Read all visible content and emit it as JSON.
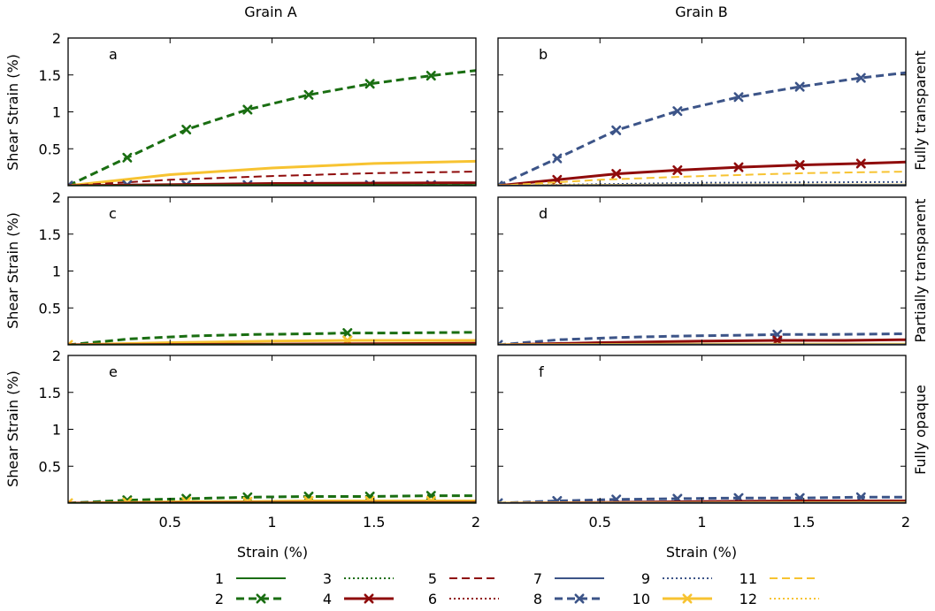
{
  "figure": {
    "column_titles": [
      "Grain A",
      "Grain B"
    ],
    "row_titles": [
      "Fully transparent",
      "Partially transparent",
      "Fully opaque"
    ],
    "xlabel": "Strain (%)",
    "ylabel": "Shear Strain (%)"
  },
  "colors": {
    "green": "#1a6e12",
    "darkred": "#8f0b0b",
    "blue": "#3c5488",
    "yellow": "#f7c331",
    "axis": "#000000"
  },
  "legend": {
    "columns": [
      [
        {
          "label": "1",
          "series": "1"
        },
        {
          "label": "2",
          "series": "2"
        }
      ],
      [
        {
          "label": "3",
          "series": "3"
        },
        {
          "label": "4",
          "series": "4"
        }
      ],
      [
        {
          "label": "5",
          "series": "5"
        },
        {
          "label": "6",
          "series": "6"
        }
      ],
      [
        {
          "label": "7",
          "series": "7"
        },
        {
          "label": "8",
          "series": "8"
        }
      ],
      [
        {
          "label": "9",
          "series": "9"
        },
        {
          "label": "10",
          "series": "10"
        }
      ],
      [
        {
          "label": "11",
          "series": "11"
        },
        {
          "label": "12",
          "series": "12"
        }
      ]
    ]
  },
  "series_styles": {
    "1": {
      "color": "green",
      "dash": "solid",
      "width": 2,
      "marker": false
    },
    "2": {
      "color": "green",
      "dash": "dash",
      "width": 3,
      "marker": true
    },
    "3": {
      "color": "green",
      "dash": "dot",
      "width": 2,
      "marker": false
    },
    "4": {
      "color": "darkred",
      "dash": "solid",
      "width": 3,
      "marker": true
    },
    "5": {
      "color": "darkred",
      "dash": "dash",
      "width": 2,
      "marker": false
    },
    "6": {
      "color": "darkred",
      "dash": "dot",
      "width": 2,
      "marker": false
    },
    "7": {
      "color": "blue",
      "dash": "solid",
      "width": 2,
      "marker": false
    },
    "8": {
      "color": "blue",
      "dash": "dash",
      "width": 3,
      "marker": true
    },
    "9": {
      "color": "blue",
      "dash": "dot",
      "width": 2,
      "marker": false
    },
    "10": {
      "color": "yellow",
      "dash": "solid",
      "width": 3,
      "marker": true
    },
    "11": {
      "color": "yellow",
      "dash": "dash",
      "width": 2,
      "marker": false
    },
    "12": {
      "color": "yellow",
      "dash": "dot",
      "width": 2,
      "marker": false
    }
  },
  "chart_data": [
    {
      "type": "line",
      "panel": "a",
      "row": 0,
      "col": 0,
      "xlim": [
        0,
        2
      ],
      "ylim": [
        0,
        2
      ],
      "xticks": [
        "0.5",
        "1",
        "1.5",
        "2"
      ],
      "yticks": [
        "0.5",
        "1",
        "1.5",
        "2"
      ],
      "show_xticks": false,
      "show_yticks": true,
      "series": [
        {
          "id": "2",
          "x": [
            0,
            0.29,
            0.58,
            0.88,
            1.18,
            1.48,
            1.78,
            2.0
          ],
          "y": [
            0,
            0.38,
            0.76,
            1.03,
            1.23,
            1.38,
            1.49,
            1.56
          ],
          "markers": [
            0,
            1,
            2,
            3,
            4,
            5,
            6
          ]
        },
        {
          "id": "10",
          "x": [
            0,
            0.5,
            1.0,
            1.5,
            2.0
          ],
          "y": [
            0,
            0.15,
            0.24,
            0.3,
            0.33
          ],
          "markers": []
        },
        {
          "id": "5",
          "x": [
            0,
            0.5,
            1.0,
            1.5,
            2.0
          ],
          "y": [
            0,
            0.08,
            0.13,
            0.17,
            0.19
          ],
          "markers": []
        },
        {
          "id": "8",
          "x": [
            0,
            0.29,
            0.58,
            0.88,
            1.18,
            1.48,
            1.78,
            2.0
          ],
          "y": [
            0,
            0.01,
            0.01,
            0.01,
            0.01,
            0.01,
            0.01,
            0.01
          ],
          "markers": [
            0,
            1,
            2,
            3,
            4,
            5,
            6
          ]
        },
        {
          "id": "4",
          "x": [
            0,
            1.0,
            2.0
          ],
          "y": [
            0,
            0.03,
            0.04
          ],
          "markers": []
        },
        {
          "id": "1",
          "x": [
            0,
            1.0,
            2.0
          ],
          "y": [
            0,
            0.01,
            0.01
          ],
          "markers": []
        }
      ]
    },
    {
      "type": "line",
      "panel": "b",
      "row": 0,
      "col": 1,
      "xlim": [
        0,
        2
      ],
      "ylim": [
        0,
        2
      ],
      "xticks": [
        "0.5",
        "1",
        "1.5",
        "2"
      ],
      "yticks": [
        "0.5",
        "1",
        "1.5",
        "2"
      ],
      "show_xticks": false,
      "show_yticks": false,
      "series": [
        {
          "id": "8",
          "x": [
            0,
            0.29,
            0.58,
            0.88,
            1.18,
            1.48,
            1.78,
            2.0
          ],
          "y": [
            0,
            0.37,
            0.75,
            1.01,
            1.2,
            1.34,
            1.46,
            1.53
          ],
          "markers": [
            0,
            1,
            2,
            3,
            4,
            5,
            6
          ]
        },
        {
          "id": "4",
          "x": [
            0,
            0.29,
            0.58,
            0.88,
            1.18,
            1.48,
            1.78,
            2.0
          ],
          "y": [
            0,
            0.08,
            0.16,
            0.21,
            0.25,
            0.28,
            0.3,
            0.32
          ],
          "markers": [
            1,
            2,
            3,
            4,
            5,
            6
          ]
        },
        {
          "id": "11",
          "x": [
            0,
            0.5,
            1.0,
            1.5,
            2.0
          ],
          "y": [
            0,
            0.08,
            0.13,
            0.17,
            0.19
          ],
          "markers": []
        },
        {
          "id": "9",
          "x": [
            0,
            1.0,
            2.0
          ],
          "y": [
            0,
            0.04,
            0.05
          ],
          "markers": []
        },
        {
          "id": "10",
          "x": [
            0,
            1.0,
            2.0
          ],
          "y": [
            0,
            0.01,
            0.01
          ],
          "markers": []
        },
        {
          "id": "7",
          "x": [
            0,
            1.0,
            2.0
          ],
          "y": [
            0,
            0.01,
            0.01
          ],
          "markers": []
        }
      ]
    },
    {
      "type": "line",
      "panel": "c",
      "row": 1,
      "col": 0,
      "xlim": [
        0,
        2
      ],
      "ylim": [
        0,
        2
      ],
      "xticks": [
        "0.5",
        "1",
        "1.5",
        "2"
      ],
      "yticks": [
        "0.5",
        "1",
        "1.5",
        "2"
      ],
      "show_xticks": false,
      "show_yticks": true,
      "series": [
        {
          "id": "2",
          "x": [
            0,
            0.3,
            0.6,
            0.9,
            1.2,
            1.37,
            1.6,
            2.0
          ],
          "y": [
            0,
            0.08,
            0.12,
            0.14,
            0.15,
            0.16,
            0.16,
            0.17
          ],
          "markers": [
            5
          ]
        },
        {
          "id": "10",
          "x": [
            0,
            0.5,
            1.0,
            1.37,
            1.7,
            2.0
          ],
          "y": [
            0,
            0.03,
            0.05,
            0.06,
            0.06,
            0.06
          ],
          "markers": [
            0,
            3
          ]
        },
        {
          "id": "4",
          "x": [
            0,
            1.0,
            2.0
          ],
          "y": [
            0,
            0.01,
            0.02
          ],
          "markers": []
        },
        {
          "id": "1",
          "x": [
            0,
            1.0,
            2.0
          ],
          "y": [
            0,
            0.005,
            0.005
          ],
          "markers": []
        }
      ]
    },
    {
      "type": "line",
      "panel": "d",
      "row": 1,
      "col": 1,
      "xlim": [
        0,
        2
      ],
      "ylim": [
        0,
        2
      ],
      "xticks": [
        "0.5",
        "1",
        "1.5",
        "2"
      ],
      "yticks": [
        "0.5",
        "1",
        "1.5",
        "2"
      ],
      "show_xticks": false,
      "show_yticks": false,
      "series": [
        {
          "id": "8",
          "x": [
            0,
            0.3,
            0.6,
            0.9,
            1.2,
            1.37,
            1.6,
            2.0
          ],
          "y": [
            0,
            0.07,
            0.1,
            0.12,
            0.13,
            0.14,
            0.14,
            0.15
          ],
          "markers": [
            0,
            5
          ]
        },
        {
          "id": "4",
          "x": [
            0,
            0.5,
            1.0,
            1.37,
            1.7,
            2.0
          ],
          "y": [
            0,
            0.03,
            0.05,
            0.06,
            0.06,
            0.07
          ],
          "markers": [
            3
          ]
        },
        {
          "id": "10",
          "x": [
            0,
            1.0,
            2.0
          ],
          "y": [
            0,
            0.01,
            0.01
          ],
          "markers": []
        },
        {
          "id": "7",
          "x": [
            0,
            1.0,
            2.0
          ],
          "y": [
            0,
            0.005,
            0.005
          ],
          "markers": []
        }
      ]
    },
    {
      "type": "line",
      "panel": "e",
      "row": 2,
      "col": 0,
      "xlim": [
        0,
        2
      ],
      "ylim": [
        0,
        2
      ],
      "xticks": [
        "0.5",
        "1",
        "1.5",
        "2"
      ],
      "yticks": [
        "0.5",
        "1",
        "1.5",
        "2"
      ],
      "show_xticks": true,
      "show_yticks": true,
      "series": [
        {
          "id": "2",
          "x": [
            0,
            0.29,
            0.58,
            0.88,
            1.18,
            1.48,
            1.78,
            2.0
          ],
          "y": [
            0,
            0.04,
            0.06,
            0.08,
            0.09,
            0.09,
            0.1,
            0.1
          ],
          "markers": [
            1,
            2,
            3,
            4,
            5,
            6
          ]
        },
        {
          "id": "10",
          "x": [
            0,
            0.29,
            0.58,
            0.88,
            1.18,
            1.48,
            1.78,
            2.0
          ],
          "y": [
            0,
            0.01,
            0.02,
            0.02,
            0.03,
            0.03,
            0.03,
            0.03
          ],
          "markers": [
            0,
            1,
            2,
            3,
            4,
            5,
            6
          ]
        },
        {
          "id": "4",
          "x": [
            0,
            1.0,
            2.0
          ],
          "y": [
            0,
            0.01,
            0.01
          ],
          "markers": []
        },
        {
          "id": "1",
          "x": [
            0,
            1.0,
            2.0
          ],
          "y": [
            0,
            0.005,
            0.005
          ],
          "markers": []
        }
      ]
    },
    {
      "type": "line",
      "panel": "f",
      "row": 2,
      "col": 1,
      "xlim": [
        0,
        2
      ],
      "ylim": [
        0,
        2
      ],
      "xticks": [
        "0.5",
        "1",
        "1.5",
        "2"
      ],
      "yticks": [
        "0.5",
        "1",
        "1.5",
        "2"
      ],
      "show_xticks": true,
      "show_yticks": false,
      "series": [
        {
          "id": "8",
          "x": [
            0,
            0.29,
            0.58,
            0.88,
            1.18,
            1.48,
            1.78,
            2.0
          ],
          "y": [
            0,
            0.03,
            0.05,
            0.06,
            0.07,
            0.07,
            0.08,
            0.08
          ],
          "markers": [
            0,
            1,
            2,
            3,
            4,
            5,
            6
          ]
        },
        {
          "id": "4",
          "x": [
            0,
            0.5,
            1.0,
            1.5,
            2.0
          ],
          "y": [
            0,
            0.01,
            0.02,
            0.03,
            0.03
          ],
          "markers": []
        },
        {
          "id": "10",
          "x": [
            0,
            1.0,
            2.0
          ],
          "y": [
            0,
            0.005,
            0.01
          ],
          "markers": []
        },
        {
          "id": "7",
          "x": [
            0,
            1.0,
            2.0
          ],
          "y": [
            0,
            0.005,
            0.005
          ],
          "markers": []
        }
      ]
    }
  ]
}
